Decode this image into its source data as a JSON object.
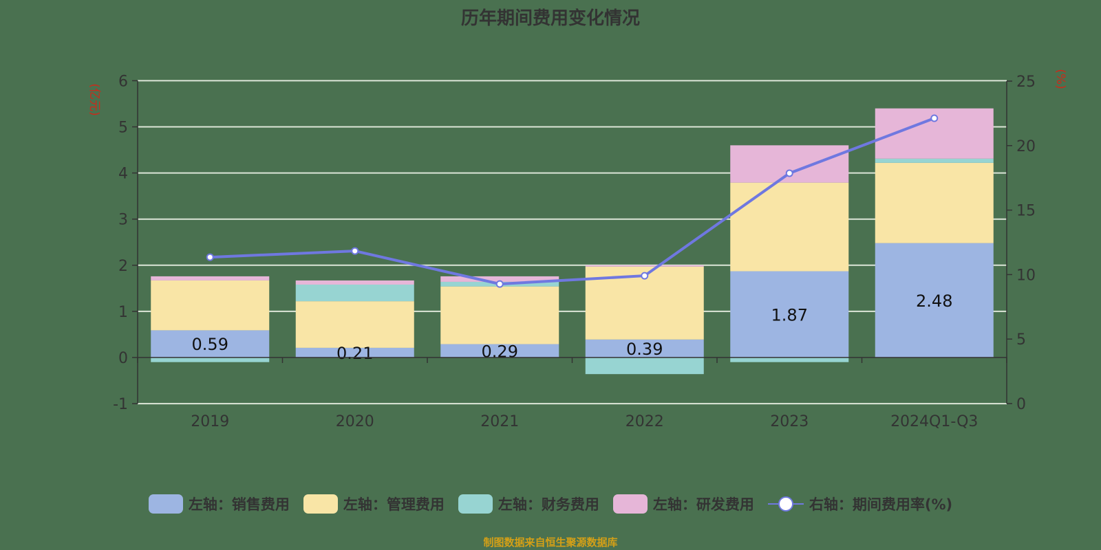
{
  "title": "历年期间费用变化情况",
  "source": "制图数据来自恒生聚源数据库",
  "left_axis_label": "(亿元)",
  "right_axis_label": "(%)",
  "colors": {
    "sales": "#9db5e2",
    "admin": "#f9e5a6",
    "finance": "#97d4d2",
    "rd": "#e6b6d8",
    "rate": "#6f78e0",
    "grid": "#dde6d8",
    "axis": "#333333",
    "axis_title": "#cc2a1a"
  },
  "legend": [
    {
      "label": "左轴：销售费用",
      "key": "sales"
    },
    {
      "label": "左轴：管理费用",
      "key": "admin"
    },
    {
      "label": "左轴：财务费用",
      "key": "finance"
    },
    {
      "label": "左轴：研发费用",
      "key": "rd"
    },
    {
      "label": "右轴：期间费用率(%)",
      "key": "rate"
    }
  ],
  "chart_data": {
    "type": "bar",
    "stacked": true,
    "title": "历年期间费用变化情况",
    "xlabel": "",
    "ylabel": "(亿元)",
    "ylabel_right": "(%)",
    "categories": [
      "2019",
      "2020",
      "2021",
      "2022",
      "2023",
      "2024Q1-Q3"
    ],
    "ylim": [
      -1,
      6
    ],
    "yticks": [
      -1,
      0,
      1,
      2,
      3,
      4,
      5,
      6
    ],
    "ylim_right": [
      0,
      25
    ],
    "yticks_right": [
      0,
      5,
      10,
      15,
      20,
      25
    ],
    "series": [
      {
        "name": "左轴：销售费用",
        "type": "bar",
        "axis": "left",
        "values": [
          0.59,
          0.21,
          0.29,
          0.39,
          1.87,
          2.48
        ],
        "labels_shown": true
      },
      {
        "name": "左轴：管理费用",
        "type": "bar",
        "axis": "left",
        "values": [
          1.08,
          1.01,
          1.25,
          1.58,
          1.92,
          1.74
        ]
      },
      {
        "name": "左轴：财务费用",
        "type": "bar",
        "axis": "left",
        "values": [
          -0.1,
          0.36,
          0.1,
          -0.36,
          -0.1,
          0.09
        ]
      },
      {
        "name": "左轴：研发费用",
        "type": "bar",
        "axis": "left",
        "values": [
          0.09,
          0.09,
          0.12,
          0.03,
          0.81,
          1.09
        ]
      },
      {
        "name": "右轴：期间费用率(%)",
        "type": "line",
        "axis": "right",
        "values": [
          11.35,
          11.83,
          9.27,
          9.91,
          17.86,
          22.12
        ]
      }
    ],
    "grid": true,
    "legend_position": "bottom"
  }
}
